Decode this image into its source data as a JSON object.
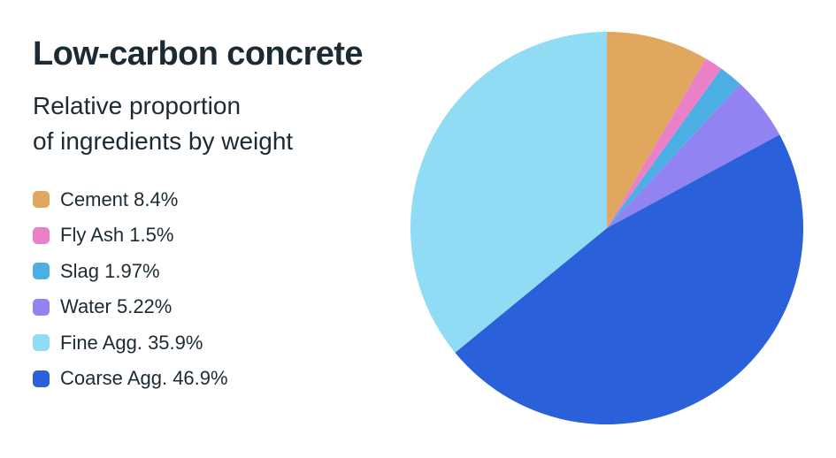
{
  "header": {
    "title": "Low-carbon concrete",
    "subtitle_lines": [
      "Relative proportion",
      "of ingredients by weight"
    ]
  },
  "colors": {
    "text": "#1c2b33",
    "background": "#ffffff"
  },
  "chart_data": {
    "type": "pie",
    "title": "Low-carbon concrete",
    "subtitle": "Relative proportion of ingredients by weight",
    "unit": "%",
    "start_angle_deg": 0,
    "direction": "clockwise",
    "legend_position": "left",
    "draw_order": [
      0,
      1,
      2,
      3,
      5,
      4
    ],
    "slices": [
      {
        "label": "Cement",
        "value": 8.4,
        "display": "Cement 8.4%",
        "color": "#e2a75f"
      },
      {
        "label": "Fly Ash",
        "value": 1.5,
        "display": "Fly Ash 1.5%",
        "color": "#ea80c8"
      },
      {
        "label": "Slag",
        "value": 1.97,
        "display": "Slag 1.97%",
        "color": "#4bafe4"
      },
      {
        "label": "Water",
        "value": 5.22,
        "display": "Water 5.22%",
        "color": "#9183f1"
      },
      {
        "label": "Fine Agg.",
        "value": 35.9,
        "display": "Fine Agg. 35.9%",
        "color": "#90dcf4"
      },
      {
        "label": "Coarse Agg.",
        "value": 46.9,
        "display": "Coarse Agg. 46.9%",
        "color": "#2a60d9"
      }
    ]
  }
}
